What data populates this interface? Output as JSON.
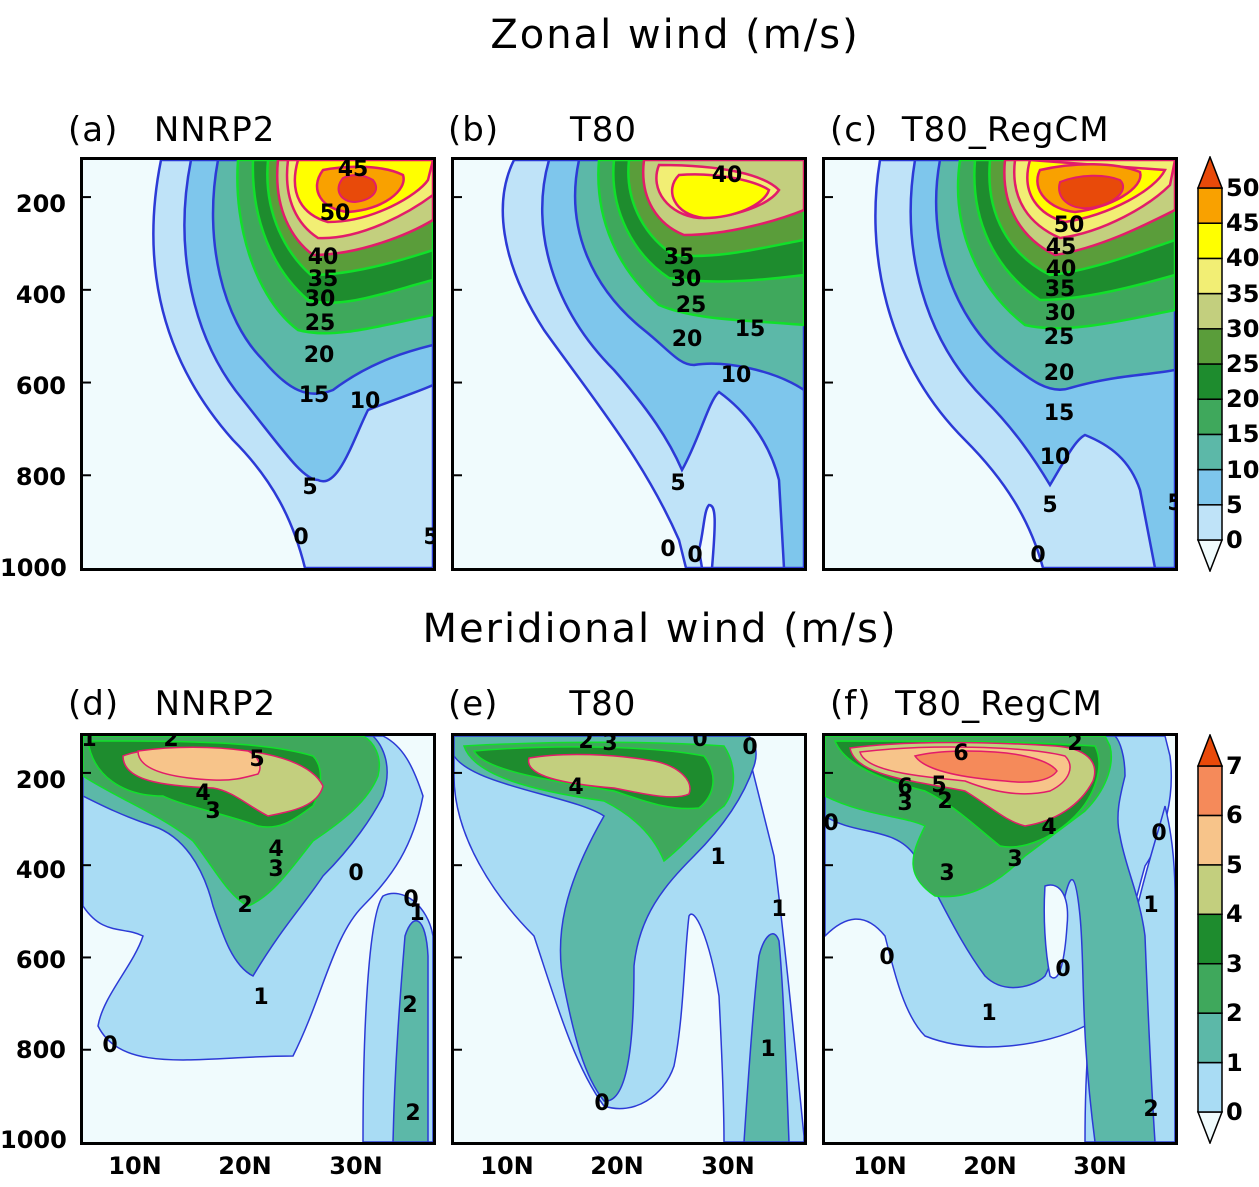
{
  "titles": {
    "zonal": "Zonal wind (m/s)",
    "meridional": "Meridional wind (m/s)"
  },
  "panels": [
    {
      "label": "(a)",
      "name": "NNRP2"
    },
    {
      "label": "(b)",
      "name": "T80"
    },
    {
      "label": "(c)",
      "name": "T80_RegCM"
    },
    {
      "label": "(d)",
      "name": "NNRP2"
    },
    {
      "label": "(e)",
      "name": "T80"
    },
    {
      "label": "(f)",
      "name": "T80_RegCM"
    }
  ],
  "y_ticks": [
    "200",
    "400",
    "600",
    "800",
    "1000"
  ],
  "x_ticks": [
    "10N",
    "20N",
    "30N"
  ],
  "colorbars": {
    "zonal": {
      "labels": [
        "0",
        "5",
        "10",
        "15",
        "20",
        "25",
        "30",
        "35",
        "40",
        "45",
        "50"
      ],
      "colors": [
        "#f0fbfd",
        "#bfe3f8",
        "#7ec6ec",
        "#5cb8a8",
        "#3fa85c",
        "#1e8c2e",
        "#5a9d3a",
        "#c3cf7e",
        "#f2ee74",
        "#ffff00",
        "#f9a100",
        "#e84a0a"
      ]
    },
    "meridional": {
      "labels": [
        "0",
        "1",
        "2",
        "3",
        "4",
        "5",
        "6",
        "7"
      ],
      "colors": [
        "#f0fbfd",
        "#a9dcf4",
        "#5cb8a8",
        "#3fa85c",
        "#1e8c2e",
        "#c3cf7e",
        "#f7c48a",
        "#f58a5a",
        "#e84a0a"
      ]
    }
  },
  "chart_data": [
    {
      "type": "heatmap",
      "title": "(a) NNRP2",
      "variable": "Zonal wind (m/s)",
      "ylim": [
        1000,
        100
      ],
      "y_ticks": [
        200,
        400,
        600,
        800,
        1000
      ],
      "contour_labels": [
        45,
        50,
        40,
        35,
        30,
        25,
        20,
        15,
        10,
        5,
        0,
        5
      ],
      "max_value": 52
    },
    {
      "type": "heatmap",
      "title": "(b) T80",
      "variable": "Zonal wind (m/s)",
      "ylim": [
        1000,
        100
      ],
      "y_ticks": [
        200,
        400,
        600,
        800,
        1000
      ],
      "contour_labels": [
        40,
        35,
        30,
        25,
        20,
        15,
        10,
        5,
        0,
        0
      ],
      "max_value": 42
    },
    {
      "type": "heatmap",
      "title": "(c) T80_RegCM",
      "variable": "Zonal wind (m/s)",
      "ylim": [
        1000,
        100
      ],
      "y_ticks": [
        200,
        400,
        600,
        800,
        1000
      ],
      "contour_labels": [
        50,
        45,
        40,
        35,
        30,
        25,
        20,
        15,
        10,
        5,
        0,
        5
      ],
      "max_value": 52
    },
    {
      "type": "heatmap",
      "title": "(d) NNRP2",
      "variable": "Meridional wind (m/s)",
      "ylim": [
        1000,
        100
      ],
      "y_ticks": [
        200,
        400,
        600,
        800,
        1000
      ],
      "x_ticks": [
        "10N",
        "20N",
        "30N"
      ],
      "contour_labels": [
        1,
        2,
        5,
        4,
        3,
        4,
        3,
        0,
        2,
        0,
        1,
        1,
        2,
        0,
        2
      ],
      "max_value": 5.5
    },
    {
      "type": "heatmap",
      "title": "(e) T80",
      "variable": "Meridional wind (m/s)",
      "ylim": [
        1000,
        100
      ],
      "y_ticks": [
        200,
        400,
        600,
        800,
        1000
      ],
      "x_ticks": [
        "10N",
        "20N",
        "30N"
      ],
      "contour_labels": [
        2,
        3,
        0,
        0,
        4,
        1,
        1,
        1,
        0
      ],
      "max_value": 4.5
    },
    {
      "type": "heatmap",
      "title": "(f) T80_RegCM",
      "variable": "Meridional wind (m/s)",
      "ylim": [
        1000,
        100
      ],
      "y_ticks": [
        200,
        400,
        600,
        800,
        1000
      ],
      "x_ticks": [
        "10N",
        "20N",
        "30N"
      ],
      "contour_labels": [
        6,
        2,
        6,
        5,
        3,
        2,
        0,
        4,
        0,
        3,
        3,
        1,
        0,
        0,
        1,
        2
      ],
      "max_value": 6.5
    }
  ]
}
